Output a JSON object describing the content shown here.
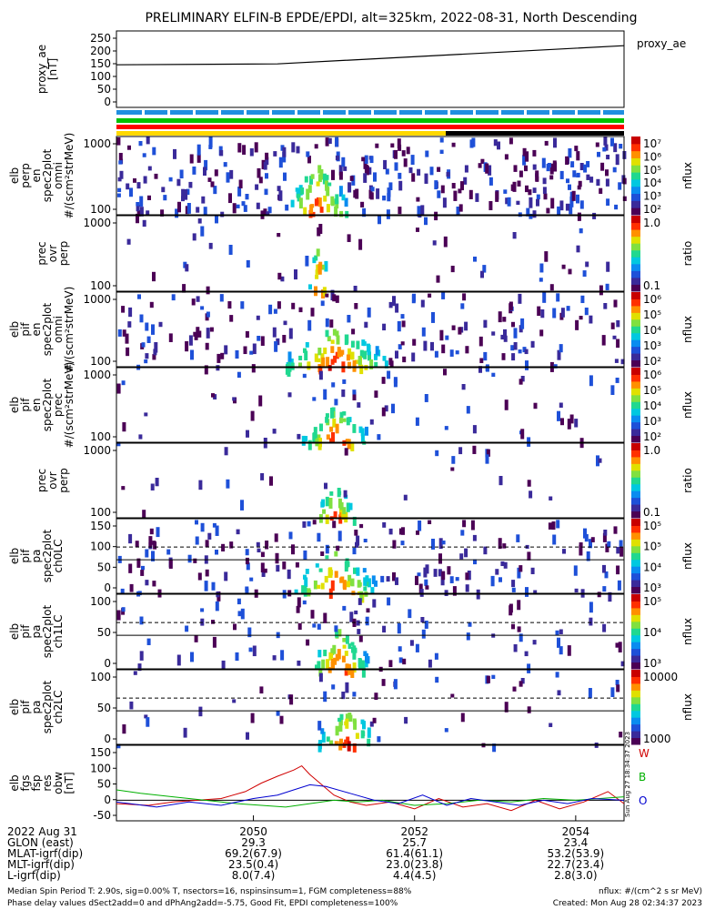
{
  "title": "PRELIMINARY ELFIN-B EPDE/EPDI, alt=325km, 2022-08-31, North Descending",
  "colors": {
    "ae_line": "#000000",
    "bar_blue": "#1f8fe0",
    "bar_green": "#00c000",
    "bar_red": "#ff0000",
    "bar_yellow": "#ffd800",
    "bar_black": "#000000",
    "mag_w": "#d00000",
    "mag_b": "#00b000",
    "mag_o": "#0000d0"
  },
  "colorbar_palette": [
    "#4b0055",
    "#3a2a9a",
    "#1e50d8",
    "#0a8cf0",
    "#00c8e0",
    "#20d890",
    "#80e040",
    "#e0e000",
    "#ff9000",
    "#ff3000",
    "#c80000"
  ],
  "panels": [
    {
      "key": "proxy_ae",
      "ylabel": [
        "proxy_ae",
        "[nT]"
      ],
      "yticks": [
        "250",
        "200",
        "150",
        "100",
        "50",
        "0"
      ],
      "legend": "proxy_ae"
    },
    {
      "key": "elb_perp",
      "ylabel": [
        "elb",
        "perp",
        "en",
        "spec2plot",
        "omni",
        "#/(scm²strMeV)"
      ],
      "yticks": [
        "1000",
        "100"
      ],
      "cbar_ticks": [
        "10⁷",
        "10⁶",
        "10⁵",
        "10⁴",
        "10³",
        "10²"
      ],
      "cbar_label": "nflux"
    },
    {
      "key": "prec_ovr_perp1",
      "ylabel": [
        "prec",
        "ovr",
        "perp"
      ],
      "yticks": [
        "1000",
        "100"
      ],
      "cbar_ticks": [
        "1.0",
        "0.1"
      ],
      "cbar_label": "ratio"
    },
    {
      "key": "elb_pif_omni",
      "ylabel": [
        "elb",
        "pif",
        "en",
        "spec2plot",
        "omni",
        "#/(scm²strMeV)"
      ],
      "yticks": [
        "1000",
        "100"
      ],
      "cbar_ticks": [
        "10⁶",
        "10⁵",
        "10⁴",
        "10³",
        "10²"
      ],
      "cbar_label": "nflux"
    },
    {
      "key": "elb_pif_prec",
      "ylabel": [
        "elb",
        "pif",
        "en",
        "spec2plot",
        "prec",
        "#/(scm²strMeV)"
      ],
      "yticks": [
        "1000",
        "100"
      ],
      "cbar_ticks": [
        "10⁶",
        "10⁵",
        "10⁴",
        "10³",
        "10²"
      ],
      "cbar_label": "nflux"
    },
    {
      "key": "prec_ovr_perp2",
      "ylabel": [
        "prec",
        "ovr",
        "perp"
      ],
      "yticks": [
        "1000",
        "100"
      ],
      "cbar_ticks": [
        "1.0",
        "0.1"
      ],
      "cbar_label": "ratio"
    },
    {
      "key": "pa_ch0",
      "ylabel": [
        "elb",
        "pif",
        "pa",
        "spec2plot",
        "ch0LC"
      ],
      "yticks": [
        "150",
        "100",
        "50",
        "0"
      ],
      "cbar_ticks": [
        "10⁵",
        "10⁵",
        "10⁴",
        "10³"
      ],
      "cbar_label": "nflux"
    },
    {
      "key": "pa_ch1",
      "ylabel": [
        "elb",
        "pif",
        "pa",
        "spec2plot",
        "ch1LC"
      ],
      "yticks": [
        "100",
        "50",
        "0"
      ],
      "cbar_ticks": [
        "10⁵",
        "10⁴",
        "10³"
      ],
      "cbar_label": "nflux"
    },
    {
      "key": "pa_ch2",
      "ylabel": [
        "elb",
        "pif",
        "pa",
        "spec2plot",
        "ch2LC"
      ],
      "yticks": [
        "100",
        "50",
        "0"
      ],
      "cbar_ticks": [
        "10000",
        "1000"
      ],
      "cbar_label": "nflux"
    },
    {
      "key": "fgs",
      "ylabel": [
        "elb",
        "fgs",
        "fsp",
        "res",
        "obw",
        "[nT]"
      ],
      "yticks": [
        "150",
        "100",
        "50",
        "0",
        "-50"
      ],
      "legend": [
        "W",
        "B",
        "O"
      ],
      "side_note": "Sun Aug 27 18:34:37 2023"
    }
  ],
  "chart_data": {
    "type": "line",
    "proxy_ae": {
      "name": "proxy_ae",
      "x": [
        2048.3,
        2050.3,
        2054.6
      ],
      "y": [
        145,
        148,
        210
      ],
      "ylim": [
        0,
        260
      ]
    },
    "fgs": {
      "ylim": [
        -60,
        160
      ],
      "series": [
        {
          "name": "W",
          "x": [
            2048.3,
            2048.7,
            2049.0,
            2049.3,
            2049.6,
            2049.9,
            2050.1,
            2050.3,
            2050.5,
            2050.6,
            2050.7,
            2050.8,
            2050.9,
            2051.0,
            2051.2,
            2051.4,
            2051.7,
            2052.0,
            2052.3,
            2052.6,
            2052.9,
            2053.2,
            2053.5,
            2053.8,
            2054.1,
            2054.4,
            2054.6
          ],
          "y": [
            -10,
            -15,
            -5,
            0,
            5,
            25,
            50,
            70,
            88,
            100,
            75,
            55,
            35,
            15,
            -5,
            -15,
            -5,
            -25,
            5,
            -20,
            -10,
            -30,
            0,
            -25,
            -5,
            25,
            -10
          ]
        },
        {
          "name": "B",
          "x": [
            2048.3,
            2048.6,
            2049.0,
            2049.4,
            2049.8,
            2050.1,
            2050.4,
            2050.7,
            2051.0,
            2051.3,
            2051.6,
            2052.0,
            2052.4,
            2052.8,
            2053.2,
            2053.6,
            2054.0,
            2054.3,
            2054.6
          ],
          "y": [
            30,
            20,
            10,
            0,
            -10,
            -15,
            -20,
            -10,
            0,
            -5,
            0,
            -15,
            -10,
            0,
            -5,
            5,
            0,
            5,
            10
          ]
        },
        {
          "name": "O",
          "x": [
            2048.3,
            2048.8,
            2049.2,
            2049.6,
            2050.0,
            2050.3,
            2050.5,
            2050.7,
            2050.9,
            2051.2,
            2051.5,
            2051.8,
            2052.1,
            2052.4,
            2052.7,
            2053.0,
            2053.3,
            2053.6,
            2053.9,
            2054.2,
            2054.6
          ],
          "y": [
            -5,
            -20,
            -5,
            -15,
            5,
            15,
            30,
            45,
            40,
            20,
            0,
            -10,
            15,
            -15,
            5,
            -5,
            -15,
            0,
            -10,
            5,
            0
          ]
        }
      ]
    }
  },
  "spectrogram": {
    "xlim": [
      2048.3,
      2054.6
    ],
    "elb_perp": {
      "core": [
        2050.78,
        0.38,
        0.68
      ],
      "noise": 0.35
    },
    "prec_ovr_perp1": {
      "core": [
        2050.8,
        0.12,
        0.78
      ],
      "noise": 0.05
    },
    "elb_pif_omni": {
      "core": [
        2051.0,
        0.65,
        0.55
      ],
      "noise": 0.22
    },
    "elb_pif_prec": {
      "core": [
        2051.0,
        0.4,
        0.5
      ],
      "noise": 0.08
    },
    "prec_ovr_perp2": {
      "core": [
        2051.0,
        0.25,
        0.45
      ],
      "noise": 0.03
    },
    "pa_ch0": {
      "core": [
        2051.0,
        0.5,
        0.6
      ],
      "noise": 0.2
    },
    "pa_ch1": {
      "core": [
        2051.05,
        0.35,
        0.55
      ],
      "noise": 0.1
    },
    "pa_ch2": {
      "core": [
        2051.15,
        0.35,
        0.5
      ],
      "noise": 0.05
    }
  },
  "xaxis": {
    "row_labels": [
      "2022 Aug 31",
      "GLON (east)",
      "MLAT-igrf(dip)",
      "MLT-igrf(dip)",
      "L-igrf(dip)"
    ],
    "columns": [
      {
        "x": 2050,
        "values": [
          "2050",
          "29.3",
          "69.2(67.9)",
          "23.5(0.4)",
          "8.0(7.4)"
        ]
      },
      {
        "x": 2052,
        "values": [
          "2052",
          "25.7",
          "61.4(61.1)",
          "23.0(23.8)",
          "4.4(4.5)"
        ]
      },
      {
        "x": 2054,
        "values": [
          "2054",
          "23.4",
          "53.2(53.9)",
          "22.7(23.4)",
          "2.8(3.0)"
        ]
      }
    ]
  },
  "footer": {
    "line1_left": "Median Spin Period T: 2.90s, sig=0.00% T, nsectors=16, nspinsinsum=1, FGM completeness=88%",
    "line2_left": "Phase delay values dSect2add=0 and dPhAng2add=-5.75, Good Fit, EPDI completeness=100%",
    "line1_right": "nflux: #/(cm^2 s sr MeV)",
    "line2_right": "Created: Mon Aug 28 02:34:37 2023"
  }
}
